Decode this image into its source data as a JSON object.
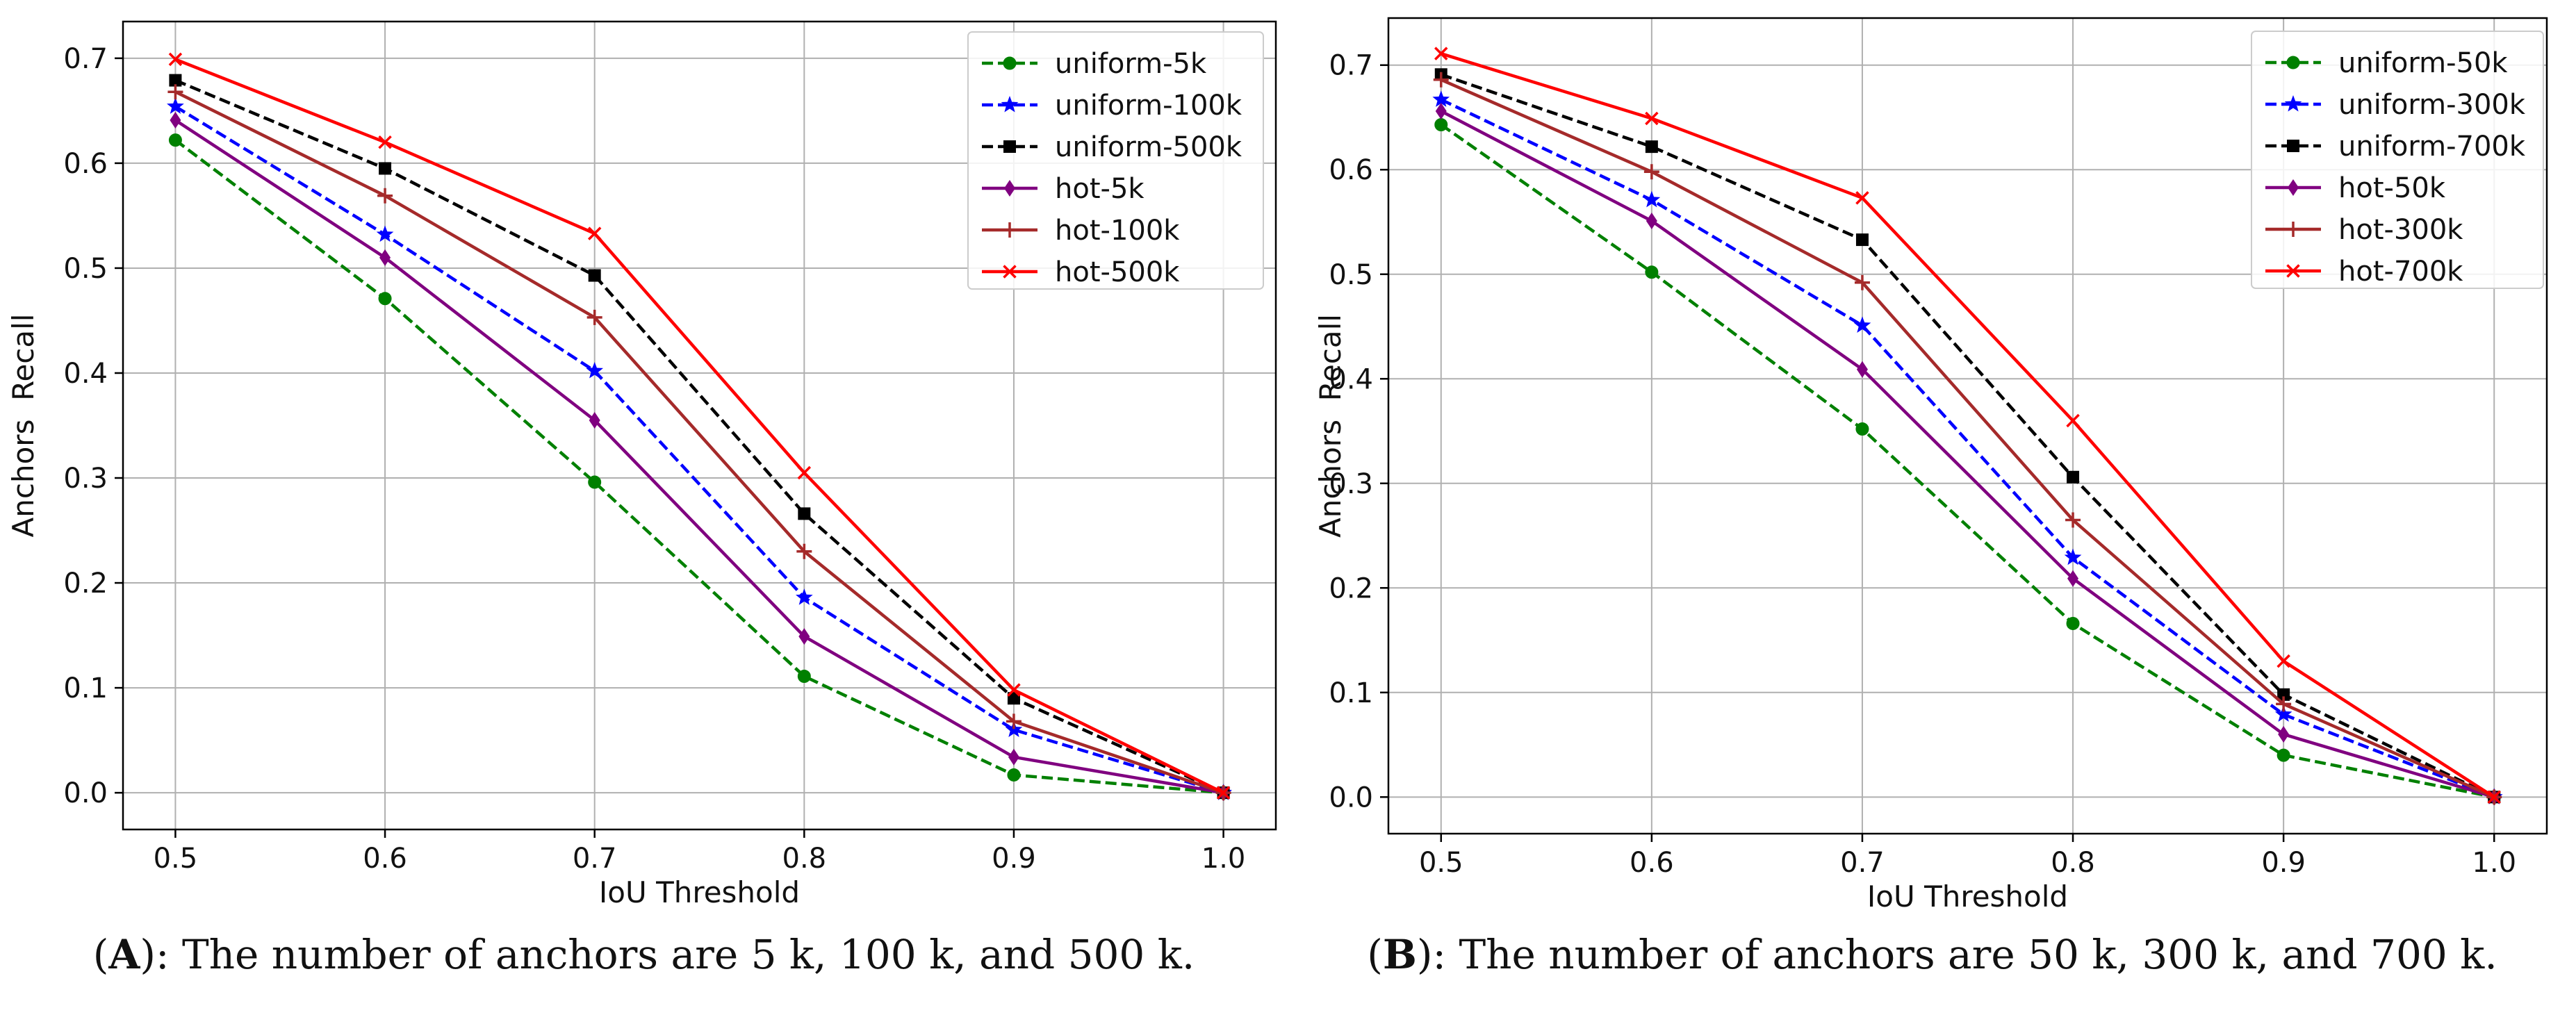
{
  "chart_data": [
    {
      "type": "line",
      "panel_tag": "A",
      "caption_text": "): The number of anchors are 5 k, 100 k, and 500 k.",
      "xlabel": "IoU Threshold",
      "ylabel": "Anchors  Recall",
      "x": [
        0.5,
        0.6,
        0.7,
        0.8,
        0.9,
        1.0
      ],
      "x_tick_labels": [
        "0.5",
        "0.6",
        "0.7",
        "0.8",
        "0.9",
        "1.0"
      ],
      "y_ticks": [
        0.0,
        0.1,
        0.2,
        0.3,
        0.4,
        0.5,
        0.6,
        0.7
      ],
      "y_tick_labels": [
        "0.0",
        "0.1",
        "0.2",
        "0.3",
        "0.4",
        "0.5",
        "0.6",
        "0.7"
      ],
      "xlim": [
        0.475,
        1.025
      ],
      "ylim": [
        -0.035,
        0.735
      ],
      "grid": true,
      "legend_position": "top-right",
      "series": [
        {
          "name": "uniform-5k",
          "color": "#008000",
          "dash": "dashed",
          "marker": "circle",
          "values": [
            0.622,
            0.471,
            0.296,
            0.111,
            0.017,
            0.0
          ]
        },
        {
          "name": "uniform-100k",
          "color": "#0000ff",
          "dash": "dashed",
          "marker": "star",
          "values": [
            0.654,
            0.532,
            0.402,
            0.186,
            0.06,
            0.0
          ]
        },
        {
          "name": "uniform-500k",
          "color": "#000000",
          "dash": "dashed",
          "marker": "square",
          "values": [
            0.679,
            0.595,
            0.493,
            0.266,
            0.09,
            0.0
          ]
        },
        {
          "name": "hot-5k",
          "color": "#800080",
          "dash": "solid",
          "marker": "diamond",
          "values": [
            0.641,
            0.51,
            0.355,
            0.149,
            0.034,
            0.0
          ]
        },
        {
          "name": "hot-100k",
          "color": "#a52a2a",
          "dash": "solid",
          "marker": "plus",
          "values": [
            0.668,
            0.569,
            0.453,
            0.23,
            0.068,
            0.0
          ]
        },
        {
          "name": "hot-500k",
          "color": "#ff0000",
          "dash": "solid",
          "marker": "x",
          "values": [
            0.699,
            0.62,
            0.533,
            0.305,
            0.098,
            0.0
          ]
        }
      ]
    },
    {
      "type": "line",
      "panel_tag": "B",
      "caption_text": "): The number of anchors are 50 k, 300 k, and 700 k.",
      "xlabel": "IoU Threshold",
      "ylabel": "Anchors  Recall",
      "x": [
        0.5,
        0.6,
        0.7,
        0.8,
        0.9,
        1.0
      ],
      "x_tick_labels": [
        "0.5",
        "0.6",
        "0.7",
        "0.8",
        "0.9",
        "1.0"
      ],
      "y_ticks": [
        0.0,
        0.1,
        0.2,
        0.3,
        0.4,
        0.5,
        0.6,
        0.7
      ],
      "y_tick_labels": [
        "0.0",
        "0.1",
        "0.2",
        "0.3",
        "0.4",
        "0.5",
        "0.6",
        "0.7"
      ],
      "xlim": [
        0.475,
        1.025
      ],
      "ylim": [
        -0.035,
        0.745
      ],
      "grid": true,
      "legend_position": "top-right",
      "series": [
        {
          "name": "uniform-50k",
          "color": "#008000",
          "dash": "dashed",
          "marker": "circle",
          "values": [
            0.643,
            0.502,
            0.352,
            0.166,
            0.04,
            0.0
          ]
        },
        {
          "name": "uniform-300k",
          "color": "#0000ff",
          "dash": "dashed",
          "marker": "star",
          "values": [
            0.667,
            0.571,
            0.451,
            0.229,
            0.079,
            0.0
          ]
        },
        {
          "name": "uniform-700k",
          "color": "#000000",
          "dash": "dashed",
          "marker": "square",
          "values": [
            0.691,
            0.622,
            0.533,
            0.306,
            0.098,
            0.0
          ]
        },
        {
          "name": "hot-50k",
          "color": "#800080",
          "dash": "solid",
          "marker": "diamond",
          "values": [
            0.656,
            0.551,
            0.409,
            0.209,
            0.06,
            0.0
          ]
        },
        {
          "name": "hot-300k",
          "color": "#a52a2a",
          "dash": "solid",
          "marker": "plus",
          "values": [
            0.686,
            0.598,
            0.492,
            0.265,
            0.089,
            0.0
          ]
        },
        {
          "name": "hot-700k",
          "color": "#ff0000",
          "dash": "solid",
          "marker": "x",
          "values": [
            0.711,
            0.649,
            0.573,
            0.36,
            0.13,
            0.0
          ]
        }
      ]
    }
  ]
}
